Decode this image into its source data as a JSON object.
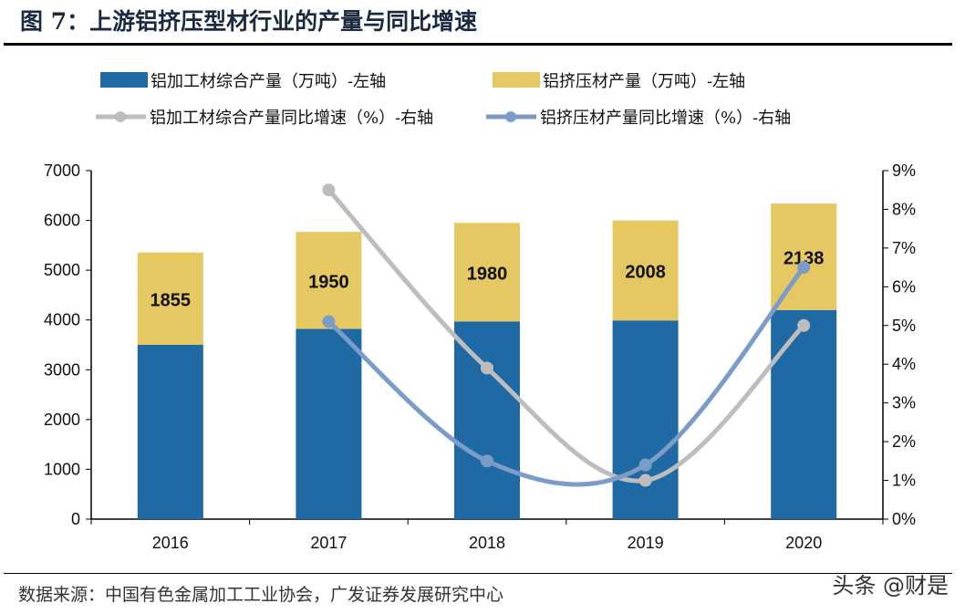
{
  "title": "图 7：上游铝挤压型材行业的产量与同比增速",
  "source": "数据来源：中国有色金属加工工业协会，广发证券发展研究中心",
  "watermark": "头条 @财是",
  "colors": {
    "blue_bar": "#1f6aa5",
    "yellow_bar": "#e5c862",
    "gray_line": "#bdbdbd",
    "blue_line": "#7b9cc9"
  },
  "chart_data": {
    "type": "bar",
    "categories": [
      "2016",
      "2017",
      "2018",
      "2019",
      "2020"
    ],
    "left_axis": {
      "range": [
        0,
        7000
      ],
      "ticks": [
        "0",
        "1000",
        "2000",
        "3000",
        "4000",
        "5000",
        "6000",
        "7000"
      ]
    },
    "right_axis": {
      "range": [
        0,
        9
      ],
      "ticks": [
        "0%",
        "1%",
        "2%",
        "3%",
        "4%",
        "5%",
        "6%",
        "7%",
        "8%",
        "9%"
      ]
    },
    "series": [
      {
        "name": "铝加工材综合产量（万吨）-左轴",
        "type": "bar",
        "stack": true,
        "axis": "left",
        "values": [
          3500,
          3820,
          3970,
          3990,
          4200
        ]
      },
      {
        "name": "铝挤压材产量（万吨）-左轴",
        "type": "bar",
        "stack": true,
        "axis": "left",
        "values": [
          1855,
          1950,
          1980,
          2008,
          2138
        ],
        "labels": [
          "1855",
          "1950",
          "1980",
          "2008",
          "2138"
        ]
      },
      {
        "name": "铝加工材综合产量同比增速（%）-右轴",
        "type": "line",
        "axis": "right",
        "values": [
          null,
          8.5,
          3.9,
          1.0,
          5.0
        ]
      },
      {
        "name": "铝挤压材产量同比增速（%）-右轴",
        "type": "line",
        "axis": "right",
        "values": [
          null,
          5.1,
          1.5,
          1.4,
          6.5
        ]
      }
    ],
    "legend": "top",
    "grid": false
  }
}
